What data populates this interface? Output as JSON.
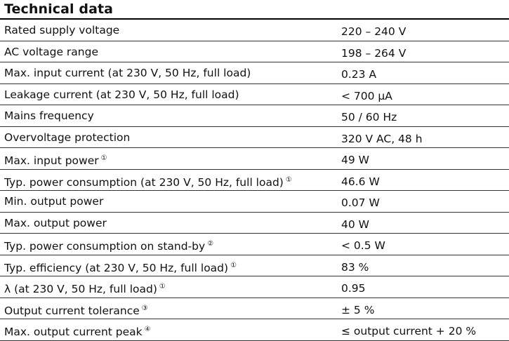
{
  "heading": "Technical data",
  "rows": [
    {
      "label": "Rated supply voltage",
      "note": "",
      "value": "220 – 240 V"
    },
    {
      "label": "AC voltage range",
      "note": "",
      "value": "198 – 264 V"
    },
    {
      "label": "Max. input current (at 230 V, 50 Hz, full load)",
      "note": "",
      "value": "0.23 A"
    },
    {
      "label": "Leakage current (at 230 V, 50 Hz, full load)",
      "note": "",
      "value": "< 700 µA"
    },
    {
      "label": "Mains frequency",
      "note": "",
      "value": "50 / 60 Hz"
    },
    {
      "label": "Overvoltage protection",
      "note": "",
      "value": "320 V AC, 48 h"
    },
    {
      "label": "Max. input power",
      "note": "①",
      "value": "49 W"
    },
    {
      "label": "Typ. power consumption (at 230 V, 50 Hz, full load)",
      "note": "①",
      "value": "46.6 W"
    },
    {
      "label": "Min. output power",
      "note": "",
      "value": "0.07 W"
    },
    {
      "label": "Max. output power",
      "note": "",
      "value": "40 W"
    },
    {
      "label": "Typ. power consumption on stand-by",
      "note": "②",
      "value": "< 0.5 W"
    },
    {
      "label": "Typ. efficiency (at 230 V, 50 Hz, full load)",
      "note": "①",
      "value": "83 %"
    },
    {
      "label": "λ (at 230 V, 50 Hz, full load)",
      "note": "①",
      "value": "0.95"
    },
    {
      "label": "Output current tolerance",
      "note": "③",
      "value": "± 5 %"
    },
    {
      "label": "Max. output current peak",
      "note": "④",
      "value": "≤ output current + 20 %"
    }
  ]
}
